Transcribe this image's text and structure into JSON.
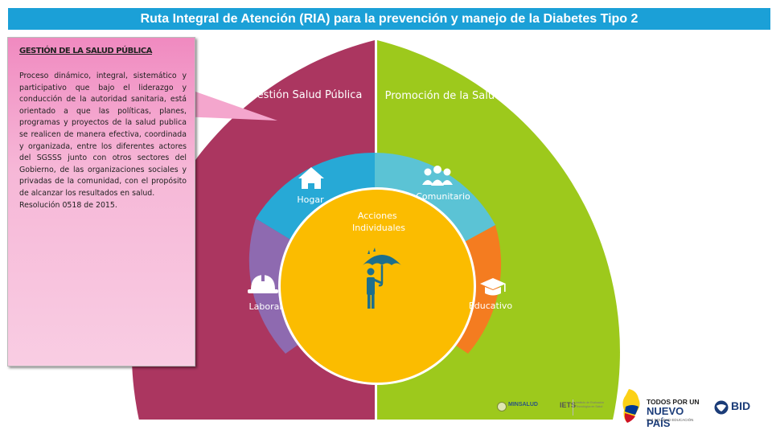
{
  "title": "Ruta Integral de Atención (RIA) para la prevención y manejo de la Diabetes Tipo 2",
  "callout": {
    "heading": "GESTIÓN DE LA SALUD PÚBLICA",
    "body": "Proceso dinámico, integral, sistemático y participativo que bajo el liderazgo y conducción de la autoridad sanitaria, está orientado a que las políticas, planes, programas y proyectos de la salud publica se realicen de manera efectiva, coordinada y organizada, entre los diferentes actores del SGSSS junto con otros sectores del Gobierno, de las organizaciones sociales y privadas de la comunidad, con el propósito de alcanzar los resultados en salud.",
    "resolution": "Resolución 0518 de 2015."
  },
  "diagram": {
    "outer_left": "Gestión Salud Pública",
    "outer_right": "Promoción de la Salud",
    "settings": {
      "hogar": "Hogar",
      "comunitario": "Comunitario",
      "laboral": "Laboral",
      "educativo": "Educativo"
    },
    "center": "Acciones Individuales"
  },
  "footer": {
    "minsalud": "MINSALUD",
    "iets": "IETS",
    "iets_sub": "Instituto de Evaluación Tecnológica en Salud",
    "nuevo_pais_top": "TODOS POR UN",
    "nuevo_pais_main": "NUEVO PAÍS",
    "nuevo_pais_sub": "PAZ  EQUIDAD  EDUCACIÓN",
    "bid": "BID"
  },
  "colors": {
    "title_bar": "#1ba0d7",
    "gestion": "#ab3660",
    "promocion": "#9dc91c",
    "hogar": "#27a9d6",
    "comunitario": "#5bc3d5",
    "laboral": "#8e6ab0",
    "educativo": "#f47c20",
    "center": "#fbbc00",
    "callout": "#f4a6cd"
  }
}
